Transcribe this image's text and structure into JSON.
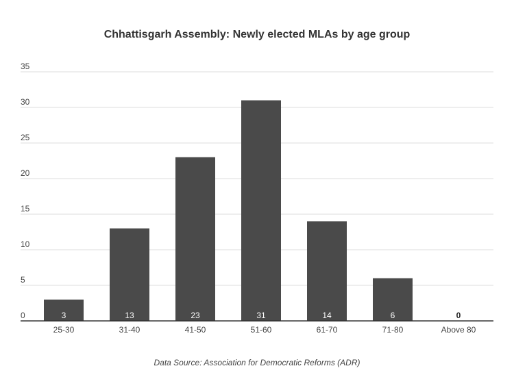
{
  "chart_data": {
    "type": "bar",
    "title": "Chhattisgarh Assembly: Newly elected MLAs by age group",
    "xlabel": "",
    "ylabel": "",
    "categories": [
      "25-30",
      "31-40",
      "41-50",
      "51-60",
      "61-70",
      "71-80",
      "Above 80"
    ],
    "values": [
      3,
      13,
      23,
      31,
      14,
      6,
      0
    ],
    "ylim": [
      0,
      35
    ],
    "yticks": [
      0,
      5,
      10,
      15,
      20,
      25,
      30,
      35
    ],
    "grid": true,
    "legend": "none",
    "data_labels": true,
    "bar_color": "#4a4a4a",
    "label_color_inside": "#ffffff",
    "label_color_outside": "#222222"
  },
  "source": "Data Source: Association for Democratic Reforms (ADR)"
}
